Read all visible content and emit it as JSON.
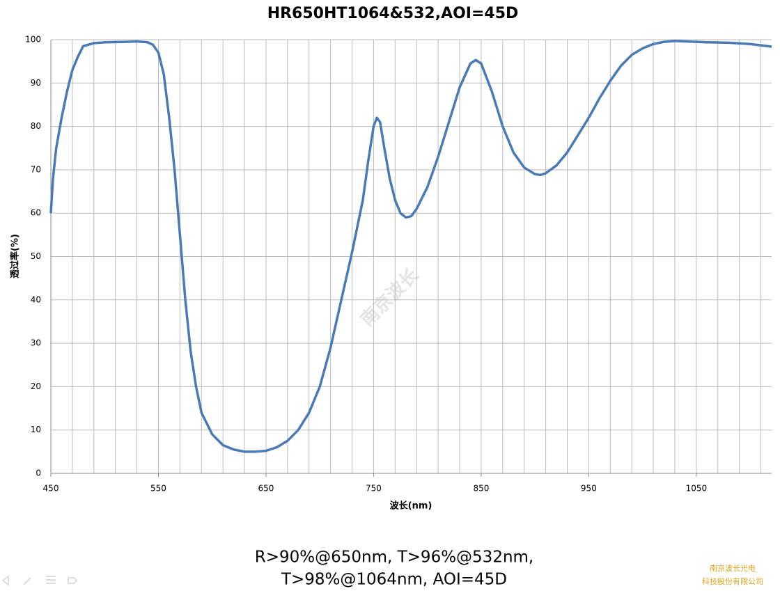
{
  "chart_data": {
    "type": "line",
    "title": "HR650HT1064&532,AOI=45D",
    "ylabel": "透过率(%)",
    "xlabel": "波长(nm)",
    "color": "#4a7ab5",
    "grid": true,
    "x_grid_step": 20,
    "xlim": [
      450,
      1120
    ],
    "xticks": [
      450,
      550,
      650,
      750,
      850,
      950,
      1050
    ],
    "ylim": [
      0,
      100
    ],
    "yticks": [
      0,
      10,
      20,
      30,
      40,
      50,
      60,
      70,
      80,
      90,
      100
    ],
    "x": [
      450,
      452,
      455,
      460,
      465,
      470,
      475,
      480,
      490,
      500,
      520,
      530,
      540,
      545,
      550,
      555,
      560,
      565,
      570,
      575,
      580,
      585,
      590,
      600,
      610,
      620,
      630,
      640,
      650,
      660,
      670,
      680,
      690,
      700,
      710,
      720,
      730,
      740,
      745,
      750,
      753,
      756,
      760,
      765,
      770,
      775,
      780,
      785,
      790,
      800,
      810,
      820,
      830,
      840,
      845,
      850,
      860,
      870,
      880,
      890,
      900,
      905,
      910,
      920,
      930,
      940,
      950,
      960,
      970,
      980,
      990,
      1000,
      1010,
      1020,
      1030,
      1040,
      1060,
      1080,
      1100,
      1120
    ],
    "values": [
      60,
      68,
      75,
      82,
      88,
      93,
      96,
      98.5,
      99.2,
      99.4,
      99.5,
      99.6,
      99.4,
      98.8,
      97,
      92,
      82,
      70,
      55,
      40,
      28,
      20,
      14,
      9,
      6.5,
      5.5,
      5,
      5,
      5.2,
      6,
      7.5,
      10,
      14,
      20,
      29,
      40,
      51,
      63,
      72,
      80,
      82,
      81,
      75,
      68,
      63,
      60,
      59,
      59.3,
      61,
      66,
      73,
      81,
      89,
      94.5,
      95.3,
      94.5,
      88,
      80,
      74,
      70.5,
      69,
      68.8,
      69.2,
      71,
      74,
      78,
      82,
      86.5,
      90.5,
      94,
      96.5,
      98,
      99,
      99.5,
      99.7,
      99.6,
      99.4,
      99.3,
      99,
      98.4
    ]
  },
  "watermark": "南京波长",
  "caption": [
    "R>90%@650nm, T>96%@532nm,",
    "T>98%@1064nm, AOI=45D"
  ],
  "company": [
    "南京波长光电",
    "科技股份有限公司"
  ]
}
